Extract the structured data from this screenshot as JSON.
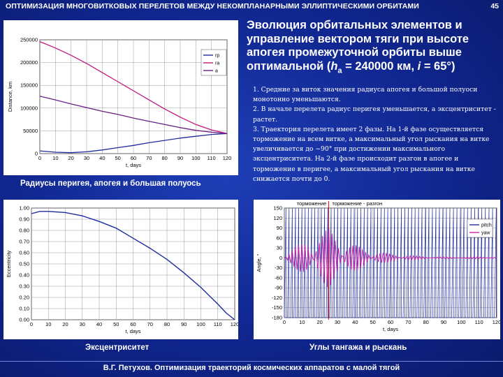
{
  "header": {
    "title": "ОПТИМИЗАЦИЯ МНОГОВИТКОВЫХ ПЕРЕЛЕТОВ МЕЖДУ НЕКОМПЛАНАРНЫМИ ЭЛЛИПТИЧЕСКИМИ ОРБИТАМИ",
    "page_number": "45"
  },
  "heading": {
    "line1": "Эволюция орбитальных элементов и",
    "line2": "управление вектором тяги при высоте",
    "line3": "апогея промежуточной орбиты выше",
    "line4_prefix": "оптимальной  (",
    "h_symbol": "h",
    "h_sub": "a",
    "line4_mid": " = 240000 км, ",
    "i_symbol": "i",
    "line4_suffix": " = 65°)"
  },
  "notes": {
    "n1": "1. Средние за виток значения радиуса апогея и большой полуоси монотонно уменьшаются.",
    "n2": "2. В начале перелета радиус перигея уменьшается, а эксцентриситет - растет.",
    "n3": "3. Траектория перелета имеет 2 фазы. На 1-й фазе осуществляется торможение на всем витке, а максимальный угол рыскания на витке увеличивается до ~90° при достижении максимального эксцентриситета. На 2-й фазе происходит разгон в апогее и торможение в перигее, а максимальный угол рыскания на витке снижается почти до 0."
  },
  "captions": {
    "radii": "Радиусы перигея, апогея и большая полуось",
    "eccentricity": "Эксцентриситет",
    "angles": "Углы тангажа и рыскань"
  },
  "phase_labels": {
    "phase1": "торможение",
    "phase2": "торможение - разгон"
  },
  "footer": {
    "text": "В.Г. Петухов. Оптимизация траекторий космических аппаратов с малой тягой"
  },
  "colors": {
    "rp": "#1f2d9c",
    "ra": "#c0177a",
    "a": "#6a1f86",
    "eccentricity": "#1f2d9c",
    "pitch": "#1f2d9c",
    "yaw": "#d21aa8"
  },
  "chart_data": [
    {
      "type": "line",
      "xlabel": "t, days",
      "ylabel": "Distance, km",
      "xlim": [
        0,
        120
      ],
      "ylim": [
        0,
        250000
      ],
      "xticks": [
        "0",
        "10",
        "20",
        "30",
        "40",
        "50",
        "60",
        "70",
        "80",
        "90",
        "100",
        "110",
        "120"
      ],
      "yticks": [
        "0",
        "50000",
        "100000",
        "150000",
        "200000",
        "250000"
      ],
      "grid": true,
      "legend": "top-right",
      "series": [
        {
          "name": "rp",
          "x": [
            0,
            10,
            20,
            30,
            40,
            50,
            60,
            70,
            80,
            90,
            100,
            110,
            120
          ],
          "y": [
            6000,
            3000,
            2000,
            4000,
            8000,
            13000,
            18000,
            24000,
            29000,
            34000,
            38000,
            42000,
            44000
          ]
        },
        {
          "name": "ra",
          "x": [
            0,
            10,
            20,
            30,
            40,
            50,
            60,
            70,
            80,
            90,
            100,
            110,
            120
          ],
          "y": [
            246000,
            232000,
            216000,
            198000,
            178000,
            158000,
            138000,
            118000,
            98000,
            80000,
            64000,
            52000,
            44000
          ]
        },
        {
          "name": "a",
          "x": [
            0,
            10,
            20,
            30,
            40,
            50,
            60,
            70,
            80,
            90,
            100,
            110,
            120
          ],
          "y": [
            126000,
            118000,
            109000,
            101000,
            93000,
            86000,
            78000,
            71000,
            64000,
            57000,
            51000,
            47000,
            44000
          ]
        }
      ]
    },
    {
      "type": "line",
      "xlabel": "t, days",
      "ylabel": "Eccentricity",
      "xlim": [
        0,
        120
      ],
      "ylim": [
        0,
        1.0
      ],
      "xticks": [
        "0",
        "10",
        "20",
        "30",
        "40",
        "50",
        "60",
        "70",
        "80",
        "90",
        "100",
        "110",
        "120"
      ],
      "yticks": [
        "0.00",
        "0.10",
        "0.20",
        "0.30",
        "0.40",
        "0.50",
        "0.60",
        "0.70",
        "0.80",
        "0.90",
        "1.00"
      ],
      "grid": true,
      "series": [
        {
          "name": "",
          "x": [
            0,
            5,
            10,
            20,
            30,
            40,
            50,
            60,
            70,
            80,
            90,
            100,
            110,
            115,
            120
          ],
          "y": [
            0.95,
            0.97,
            0.97,
            0.96,
            0.93,
            0.88,
            0.82,
            0.73,
            0.64,
            0.54,
            0.42,
            0.29,
            0.14,
            0.06,
            0.0
          ]
        }
      ]
    },
    {
      "type": "line",
      "xlabel": "t, days",
      "ylabel": "Angle, °",
      "xlim": [
        0,
        120
      ],
      "ylim": [
        -180,
        150
      ],
      "xticks": [
        "0",
        "10",
        "20",
        "30",
        "40",
        "50",
        "60",
        "70",
        "80",
        "90",
        "100",
        "110",
        "120"
      ],
      "yticks": [
        "150",
        "120",
        "90",
        "60",
        "30",
        "0",
        "-30",
        "-60",
        "-90",
        "-120",
        "-150",
        "-180"
      ],
      "grid": true,
      "legend": "top-right",
      "phase_boundary_x": 25,
      "series": [
        {
          "name": "pitch",
          "description": "oscillates once per orbit between about -180° and +180°"
        },
        {
          "name": "yaw",
          "description": "small amplitude, peaking near ±90° around day 25, then decaying toward 0"
        }
      ]
    }
  ]
}
